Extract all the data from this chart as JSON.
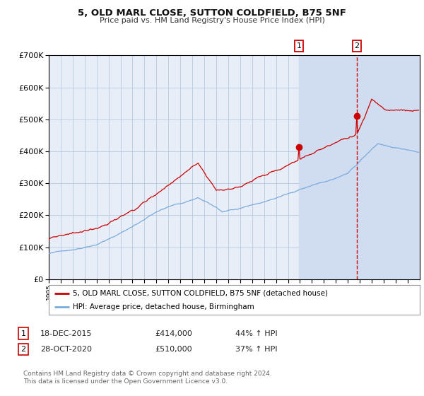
{
  "title1": "5, OLD MARL CLOSE, SUTTON COLDFIELD, B75 5NF",
  "title2": "Price paid vs. HM Land Registry's House Price Index (HPI)",
  "background_color": "#ffffff",
  "plot_bg_color": "#e8eef8",
  "shade_color": "#d0ddf0",
  "grid_color": "#b8c8dc",
  "red_line_color": "#cc0000",
  "blue_line_color": "#7aaadd",
  "event1_price": 414000,
  "event2_price": 510000,
  "legend_line1": "5, OLD MARL CLOSE, SUTTON COLDFIELD, B75 5NF (detached house)",
  "legend_line2": "HPI: Average price, detached house, Birmingham",
  "footnote1": "Contains HM Land Registry data © Crown copyright and database right 2024.",
  "footnote2": "This data is licensed under the Open Government Licence v3.0.",
  "table_row1": [
    "1",
    "18-DEC-2015",
    "£414,000",
    "44% ↑ HPI"
  ],
  "table_row2": [
    "2",
    "28-OCT-2020",
    "£510,000",
    "37% ↑ HPI"
  ],
  "start_year": 1995,
  "end_year": 2025,
  "ylim": [
    0,
    700000
  ],
  "yticks": [
    0,
    100000,
    200000,
    300000,
    400000,
    500000,
    600000,
    700000
  ]
}
